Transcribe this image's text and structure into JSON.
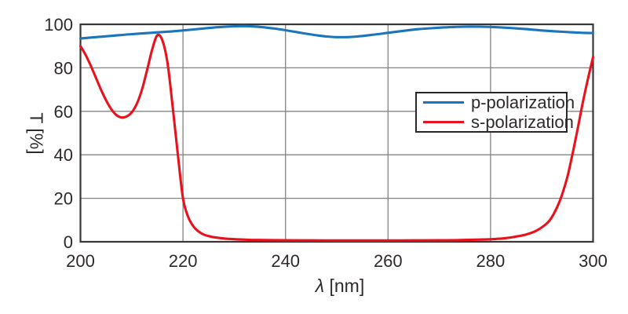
{
  "chart_data": {
    "type": "line",
    "title": "",
    "xlabel": "λ [nm]",
    "xlabel_symbol": "λ",
    "xlabel_unit": "[nm]",
    "ylabel": "T [%]",
    "xlim": [
      200,
      300
    ],
    "ylim": [
      0,
      100
    ],
    "x_ticks": [
      200,
      220,
      240,
      260,
      280,
      300
    ],
    "y_ticks": [
      0,
      20,
      40,
      60,
      80,
      100
    ],
    "grid": true,
    "legend_position": "inside-right-middle",
    "axis_color": "#3a3536",
    "grid_color": "#848484",
    "text_color": "#2e292a",
    "background_color": "#ffffff",
    "series": [
      {
        "name": "p-polarization",
        "color": "#1b75bc",
        "points": [
          [
            200,
            93.5
          ],
          [
            203,
            94.1
          ],
          [
            206,
            94.7
          ],
          [
            209,
            95.3
          ],
          [
            212,
            95.8
          ],
          [
            215,
            96.3
          ],
          [
            218,
            96.8
          ],
          [
            221,
            97.4
          ],
          [
            224,
            98.1
          ],
          [
            227,
            98.7
          ],
          [
            230,
            99.1
          ],
          [
            232,
            99.2
          ],
          [
            234,
            99.0
          ],
          [
            236,
            98.6
          ],
          [
            238,
            98.0
          ],
          [
            240,
            97.3
          ],
          [
            242,
            96.5
          ],
          [
            244,
            95.7
          ],
          [
            246,
            95.0
          ],
          [
            248,
            94.4
          ],
          [
            250,
            94.1
          ],
          [
            252,
            94.1
          ],
          [
            254,
            94.4
          ],
          [
            256,
            94.9
          ],
          [
            258,
            95.5
          ],
          [
            260,
            96.1
          ],
          [
            263,
            97.0
          ],
          [
            266,
            97.8
          ],
          [
            269,
            98.3
          ],
          [
            272,
            98.7
          ],
          [
            275,
            98.9
          ],
          [
            278,
            98.9
          ],
          [
            281,
            98.7
          ],
          [
            284,
            98.3
          ],
          [
            287,
            97.8
          ],
          [
            290,
            97.2
          ],
          [
            293,
            96.7
          ],
          [
            296,
            96.3
          ],
          [
            298,
            96.1
          ],
          [
            300,
            96.0
          ]
        ]
      },
      {
        "name": "s-polarization",
        "color": "#e8121d",
        "points": [
          [
            200,
            90
          ],
          [
            201,
            86
          ],
          [
            202,
            81
          ],
          [
            203,
            75.5
          ],
          [
            204,
            70
          ],
          [
            205,
            65
          ],
          [
            206,
            61
          ],
          [
            207,
            58.3
          ],
          [
            208,
            57.2
          ],
          [
            209,
            57.6
          ],
          [
            210,
            59.5
          ],
          [
            211,
            63.5
          ],
          [
            212,
            70
          ],
          [
            213,
            79
          ],
          [
            214,
            88.5
          ],
          [
            215,
            95
          ],
          [
            216,
            92.5
          ],
          [
            217,
            82
          ],
          [
            218,
            62
          ],
          [
            219,
            40
          ],
          [
            220,
            20
          ],
          [
            221,
            11.5
          ],
          [
            222,
            7.2
          ],
          [
            223,
            4.8
          ],
          [
            224,
            3.4
          ],
          [
            225,
            2.6
          ],
          [
            226,
            2.1
          ],
          [
            228,
            1.5
          ],
          [
            230,
            1.2
          ],
          [
            233,
            0.9
          ],
          [
            236,
            0.8
          ],
          [
            240,
            0.7
          ],
          [
            245,
            0.65
          ],
          [
            250,
            0.6
          ],
          [
            255,
            0.6
          ],
          [
            260,
            0.6
          ],
          [
            265,
            0.65
          ],
          [
            270,
            0.7
          ],
          [
            274,
            0.8
          ],
          [
            278,
            1.0
          ],
          [
            281,
            1.3
          ],
          [
            283,
            1.7
          ],
          [
            285,
            2.4
          ],
          [
            287,
            3.4
          ],
          [
            289,
            5.2
          ],
          [
            291,
            8.5
          ],
          [
            292,
            11.5
          ],
          [
            293,
            16
          ],
          [
            294,
            22
          ],
          [
            295,
            30
          ],
          [
            296,
            40.5
          ],
          [
            297,
            52
          ],
          [
            298,
            64
          ],
          [
            299,
            75
          ],
          [
            300,
            85
          ]
        ]
      }
    ]
  }
}
